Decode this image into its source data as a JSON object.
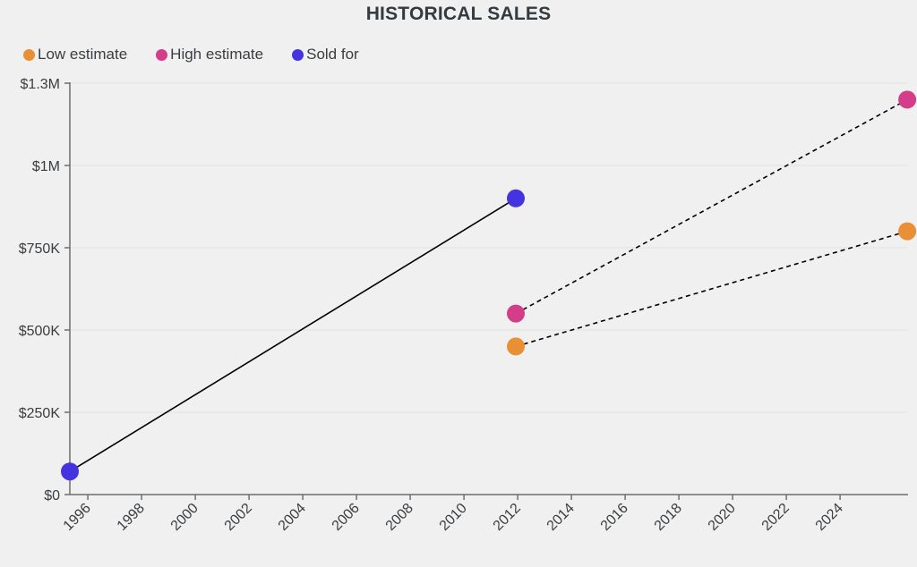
{
  "chart_data": {
    "type": "line",
    "title": "HISTORICAL SALES",
    "xlabel": "",
    "ylabel": "",
    "x_domain": [
      1995.33,
      2026.53
    ],
    "ylim": [
      0,
      1250000
    ],
    "grid": "horizontal",
    "legend_position": "top-left",
    "x_ticks": [
      1996,
      1998,
      2000,
      2002,
      2004,
      2006,
      2008,
      2010,
      2012,
      2014,
      2016,
      2018,
      2020,
      2022,
      2024
    ],
    "y_ticks": [
      {
        "value": 0,
        "label": "$0"
      },
      {
        "value": 250000,
        "label": "$250K"
      },
      {
        "value": 500000,
        "label": "$500K"
      },
      {
        "value": 750000,
        "label": "$750K"
      },
      {
        "value": 1000000,
        "label": "$1M"
      },
      {
        "value": 1250000,
        "label": "$1.3M"
      }
    ],
    "series": [
      {
        "name": "Low estimate",
        "color": "#e98f35",
        "line_style": "dashed",
        "points": [
          {
            "x": 2011.93,
            "y": 450000
          },
          {
            "x": 2026.5,
            "y": 800000
          }
        ]
      },
      {
        "name": "High estimate",
        "color": "#d33d89",
        "line_style": "dashed",
        "points": [
          {
            "x": 2011.93,
            "y": 550000
          },
          {
            "x": 2026.5,
            "y": 1200000
          }
        ]
      },
      {
        "name": "Sold for",
        "color": "#4633e0",
        "line_style": "solid",
        "points": [
          {
            "x": 1995.33,
            "y": 70000
          },
          {
            "x": 2011.93,
            "y": 900000
          }
        ]
      }
    ]
  }
}
